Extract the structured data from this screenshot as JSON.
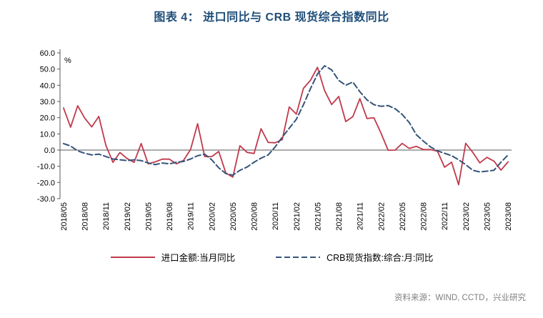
{
  "title": "图表 4： 进口同比与 CRB 现货综合指数同比",
  "source": "资料来源：WIND, CCTD，兴业研究",
  "chart_data": {
    "type": "line",
    "title": "图表 4： 进口同比与 CRB 现货综合指数同比",
    "xlabel": "",
    "ylabel": "%",
    "ylim": [
      -30,
      60
    ],
    "ytick_step": 10,
    "x_tick_every": 3,
    "grid": false,
    "legend_position": "bottom",
    "x": [
      "2018/05",
      "2018/06",
      "2018/07",
      "2018/08",
      "2018/09",
      "2018/10",
      "2018/11",
      "2018/12",
      "2019/01",
      "2019/02",
      "2019/03",
      "2019/04",
      "2019/05",
      "2019/06",
      "2019/07",
      "2019/08",
      "2019/09",
      "2019/10",
      "2019/11",
      "2019/12",
      "2020/01",
      "2020/02",
      "2020/03",
      "2020/04",
      "2020/05",
      "2020/06",
      "2020/07",
      "2020/08",
      "2020/09",
      "2020/10",
      "2020/11",
      "2020/12",
      "2021/01",
      "2021/02",
      "2021/03",
      "2021/04",
      "2021/05",
      "2021/06",
      "2021/07",
      "2021/08",
      "2021/09",
      "2021/10",
      "2021/11",
      "2021/12",
      "2022/01",
      "2022/02",
      "2022/03",
      "2022/04",
      "2022/05",
      "2022/06",
      "2022/07",
      "2022/08",
      "2022/09",
      "2022/10",
      "2022/11",
      "2022/12",
      "2023/01",
      "2023/02",
      "2023/03",
      "2023/04",
      "2023/05",
      "2023/06",
      "2023/07",
      "2023/08"
    ],
    "series": [
      {
        "name": "进口金额:当月同比",
        "color": "#C0394B",
        "style": "solid",
        "values": [
          26.0,
          14.1,
          27.3,
          19.7,
          14.3,
          20.8,
          2.9,
          -7.6,
          -1.5,
          -5.2,
          -7.6,
          4.0,
          -8.5,
          -7.3,
          -5.6,
          -5.6,
          -8.5,
          -6.4,
          0.3,
          16.3,
          -4.0,
          -4.0,
          -0.9,
          -14.2,
          -16.7,
          2.7,
          -1.4,
          -2.1,
          13.2,
          4.7,
          4.5,
          6.5,
          26.6,
          22.2,
          38.1,
          43.1,
          51.1,
          36.7,
          28.1,
          33.1,
          17.6,
          20.6,
          31.7,
          19.5,
          19.9,
          10.4,
          -0.1,
          0.0,
          4.1,
          1.0,
          2.3,
          0.3,
          0.3,
          -0.7,
          -10.6,
          -7.5,
          -21.4,
          4.2,
          -1.4,
          -7.9,
          -4.5,
          -6.8,
          -12.4,
          -7.3
        ]
      },
      {
        "name": "CRB现货指数:综合:月:同比",
        "color": "#35547A",
        "style": "dashed",
        "values": [
          4.0,
          2.5,
          -0.5,
          -2.0,
          -3.0,
          -2.5,
          -4.0,
          -5.5,
          -6.0,
          -6.5,
          -6.0,
          -6.5,
          -8.0,
          -9.0,
          -8.0,
          -8.5,
          -7.5,
          -7.0,
          -5.5,
          -3.5,
          -2.5,
          -6.0,
          -11.0,
          -14.5,
          -15.5,
          -12.5,
          -10.5,
          -7.5,
          -5.0,
          -3.0,
          2.0,
          8.0,
          13.5,
          19.0,
          28.0,
          38.0,
          47.0,
          52.0,
          49.5,
          43.0,
          40.0,
          42.0,
          36.0,
          31.0,
          28.0,
          27.0,
          27.5,
          25.5,
          22.0,
          17.0,
          9.5,
          5.5,
          2.0,
          -0.5,
          -2.0,
          -3.5,
          -6.0,
          -9.0,
          -12.5,
          -13.5,
          -13.0,
          -12.5,
          -7.5,
          -3.0
        ]
      }
    ]
  }
}
